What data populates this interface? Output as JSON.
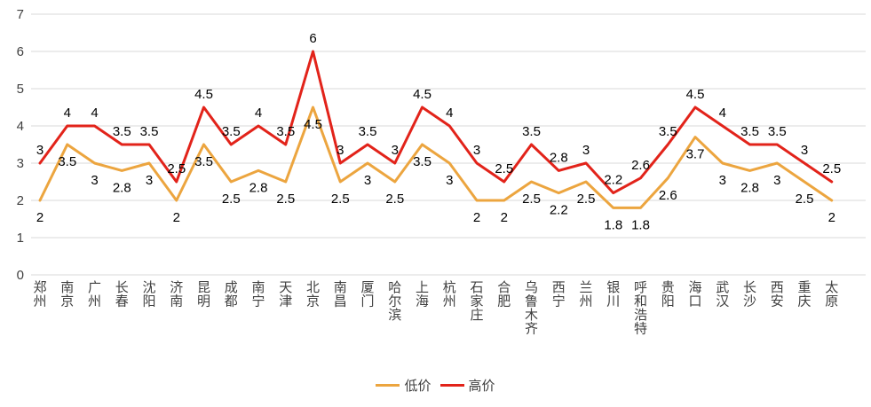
{
  "chart_data": {
    "type": "line",
    "title": "",
    "xlabel": "",
    "ylabel": "",
    "categories": [
      "郑州",
      "南京",
      "广州",
      "长春",
      "沈阳",
      "济南",
      "昆明",
      "成都",
      "南宁",
      "天津",
      "北京",
      "南昌",
      "厦门",
      "哈尔滨",
      "上海",
      "杭州",
      "石家庄",
      "合肥",
      "乌鲁木齐",
      "西宁",
      "兰州",
      "银川",
      "呼和浩特",
      "贵阳",
      "海口",
      "武汉",
      "长沙",
      "西安",
      "重庆",
      "太原"
    ],
    "series": [
      {
        "name": "低价",
        "color": "#ECA53F",
        "values": [
          2,
          3.5,
          3,
          2.8,
          3,
          2,
          3.5,
          2.5,
          2.8,
          2.5,
          4.5,
          2.5,
          3,
          2.5,
          3.5,
          3,
          2,
          2,
          2.5,
          2.2,
          2.5,
          1.8,
          1.8,
          2.6,
          3.7,
          3,
          2.8,
          3,
          2.5,
          2
        ]
      },
      {
        "name": "高价",
        "color": "#E2231A",
        "values": [
          3,
          4,
          4,
          3.5,
          3.5,
          2.5,
          4.5,
          3.5,
          4,
          3.5,
          6,
          3,
          3.5,
          3,
          4.5,
          4,
          3,
          2.5,
          3.5,
          2.8,
          3,
          2.2,
          2.6,
          3.5,
          4.5,
          4,
          3.5,
          3.5,
          3,
          2.5
        ]
      }
    ],
    "ylim": [
      0,
      7
    ],
    "yticks": [
      0,
      1,
      2,
      3,
      4,
      5,
      6,
      7
    ],
    "grid": true,
    "data_labels": true,
    "legend_position": "bottom"
  },
  "colors": {
    "gridline": "#D9D9D9",
    "axis_text": "#404040",
    "data_label": "#000000",
    "category_text": "#404040",
    "background": "#FFFFFF"
  }
}
